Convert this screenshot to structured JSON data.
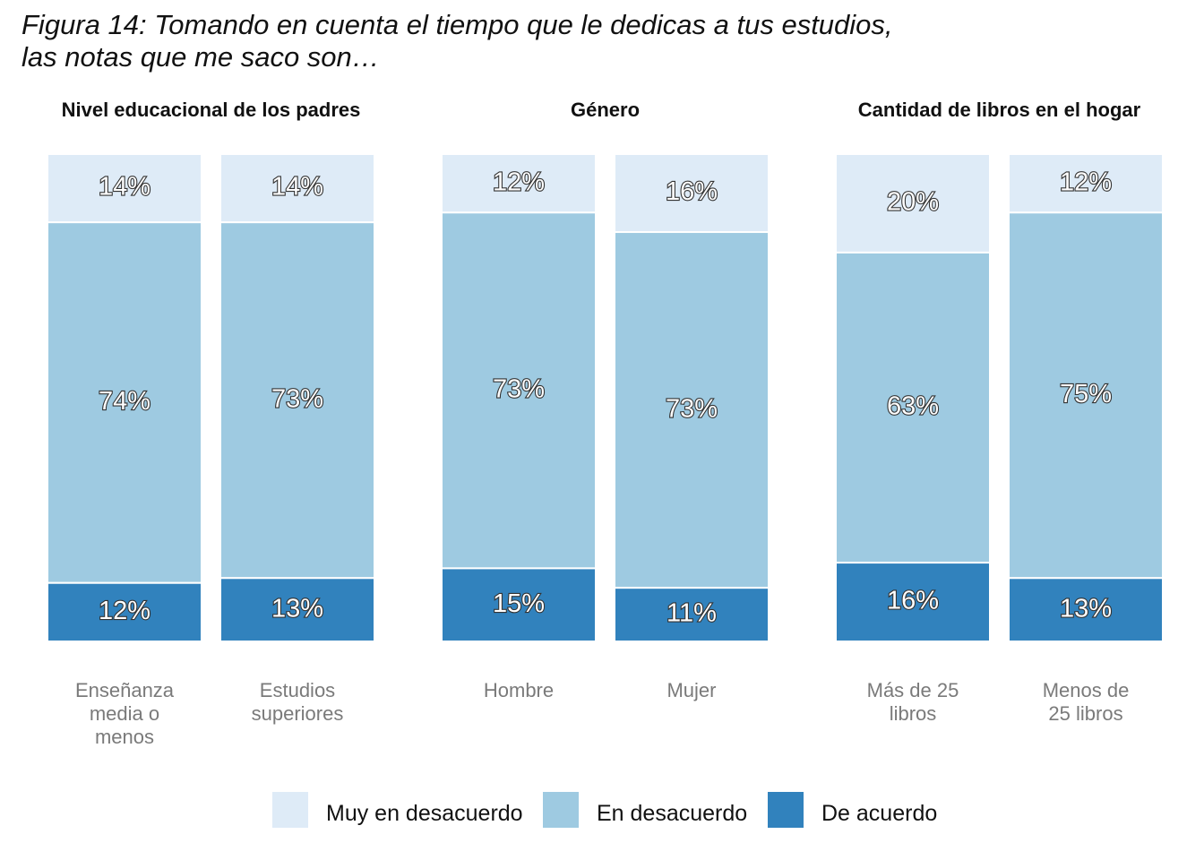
{
  "figure": {
    "title_line1": "Figura 14: Tomando en cuenta el tiempo que le dedicas a tus estudios,",
    "title_line2": "las notas que me saco son…"
  },
  "colors": {
    "Muy en desacuerdo": "#deebf7",
    "En desacuerdo": "#9ecae1",
    "De acuerdo": "#3182bd"
  },
  "legend": [
    "Muy en desacuerdo",
    "En desacuerdo",
    "De acuerdo"
  ],
  "chart_data": {
    "type": "bar",
    "stacked": true,
    "normalized": true,
    "series_order_top_to_bottom": [
      "Muy en desacuerdo",
      "En desacuerdo",
      "De acuerdo"
    ],
    "panels": [
      {
        "title": "Nivel educacional de los padres",
        "categories": [
          {
            "label": [
              "Enseñanza",
              "media o",
              "menos"
            ],
            "values": {
              "Muy en desacuerdo": 14,
              "En desacuerdo": 74,
              "De acuerdo": 12
            }
          },
          {
            "label": [
              "Estudios",
              "superiores"
            ],
            "values": {
              "Muy en desacuerdo": 14,
              "En desacuerdo": 73,
              "De acuerdo": 13
            }
          }
        ]
      },
      {
        "title": "Género",
        "categories": [
          {
            "label": [
              "Hombre"
            ],
            "values": {
              "Muy en desacuerdo": 12,
              "En desacuerdo": 73,
              "De acuerdo": 15
            }
          },
          {
            "label": [
              "Mujer"
            ],
            "values": {
              "Muy en desacuerdo": 16,
              "En desacuerdo": 73,
              "De acuerdo": 11
            }
          }
        ]
      },
      {
        "title": "Cantidad de libros en el hogar",
        "categories": [
          {
            "label": [
              "Más de 25",
              "libros"
            ],
            "values": {
              "Muy en desacuerdo": 20,
              "En desacuerdo": 63,
              "De acuerdo": 16
            }
          },
          {
            "label": [
              "Menos de",
              "25 libros"
            ],
            "values": {
              "Muy en desacuerdo": 12,
              "En desacuerdo": 75,
              "De acuerdo": 13
            }
          }
        ]
      }
    ]
  }
}
